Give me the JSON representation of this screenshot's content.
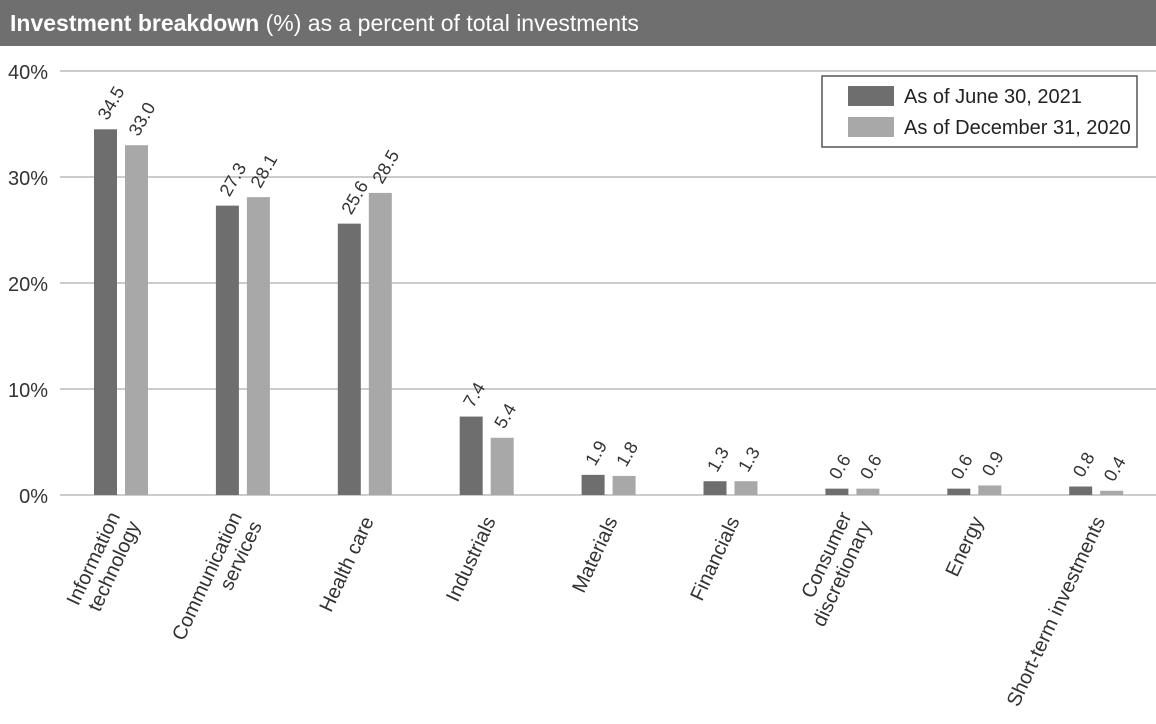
{
  "title": {
    "bold": "Investment breakdown",
    "rest": " (%) as a percent of total investments"
  },
  "colors": {
    "title_bg": "#6f6f6f",
    "series_1": "#6e6e6e",
    "series_2": "#a8a8a8",
    "grid": "#9a9a9a"
  },
  "chart_data": {
    "type": "bar",
    "title": "Investment breakdown (%) as a percent of total investments",
    "xlabel": "",
    "ylabel": "",
    "ylim": [
      0,
      40
    ],
    "yticks": [
      0,
      10,
      20,
      30,
      40
    ],
    "ytick_labels": [
      "0%",
      "10%",
      "20%",
      "30%",
      "40%"
    ],
    "grid": true,
    "legend_position": "top-right",
    "categories": [
      [
        "Information",
        "technology"
      ],
      [
        "Communication",
        "services"
      ],
      [
        "Health care"
      ],
      [
        "Industrials"
      ],
      [
        "Materials"
      ],
      [
        "Financials"
      ],
      [
        "Consumer",
        "discretionary"
      ],
      [
        "Energy"
      ],
      [
        "Short-term investments"
      ]
    ],
    "series": [
      {
        "name": "As of June 30, 2021",
        "values": [
          34.5,
          27.3,
          25.6,
          7.4,
          1.9,
          1.3,
          0.6,
          0.6,
          0.8
        ],
        "labels": [
          "34.5",
          "27.3",
          "25.6",
          "7.4",
          "1.9",
          "1.3",
          "0.6",
          "0.6",
          "0.8"
        ]
      },
      {
        "name": "As of December 31, 2020",
        "values": [
          33.0,
          28.1,
          28.5,
          5.4,
          1.8,
          1.3,
          0.6,
          0.9,
          0.4
        ],
        "labels": [
          "33.0",
          "28.1",
          "28.5",
          "5.4",
          "1.8",
          "1.3",
          "0.6",
          "0.9",
          "0.4"
        ]
      }
    ]
  }
}
